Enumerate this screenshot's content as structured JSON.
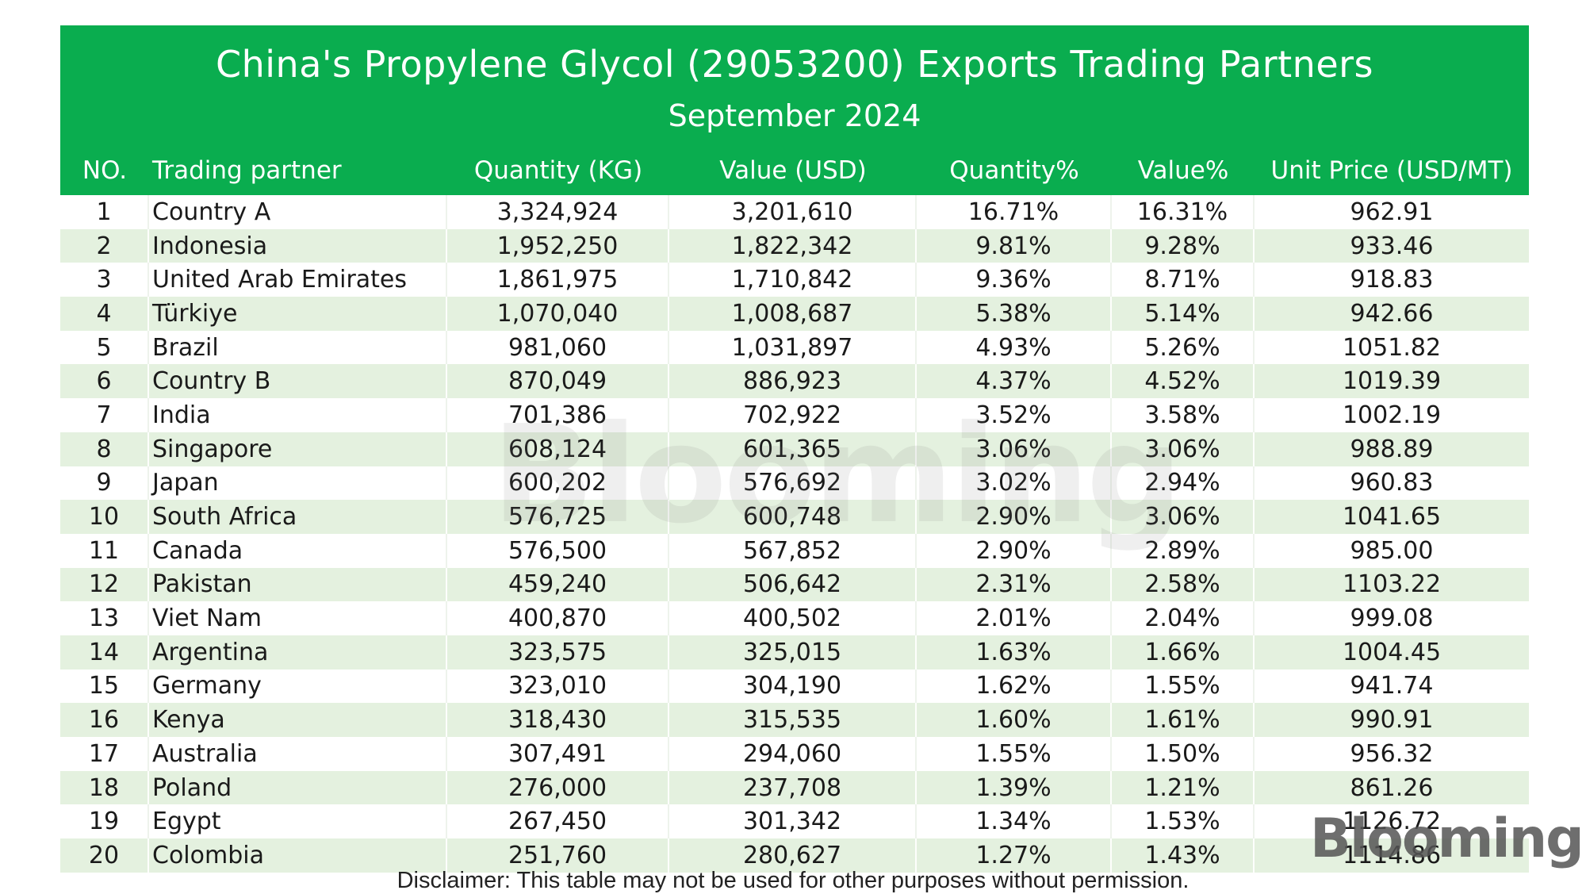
{
  "chart_data": {
    "type": "table",
    "title": "China's Propylene Glycol (29053200) Exports Trading Partners",
    "subtitle": "September 2024",
    "columns": [
      "NO.",
      "Trading partner",
      "Quantity (KG)",
      "Value (USD)",
      "Quantity%",
      "Value%",
      "Unit Price (USD/MT)"
    ],
    "rows": [
      [
        "1",
        "Country A",
        "3,324,924",
        "3,201,610",
        "16.71%",
        "16.31%",
        "962.91"
      ],
      [
        "2",
        "Indonesia",
        "1,952,250",
        "1,822,342",
        "9.81%",
        "9.28%",
        "933.46"
      ],
      [
        "3",
        "United Arab Emirates",
        "1,861,975",
        "1,710,842",
        "9.36%",
        "8.71%",
        "918.83"
      ],
      [
        "4",
        "Türkiye",
        "1,070,040",
        "1,008,687",
        "5.38%",
        "5.14%",
        "942.66"
      ],
      [
        "5",
        "Brazil",
        "981,060",
        "1,031,897",
        "4.93%",
        "5.26%",
        "1051.82"
      ],
      [
        "6",
        "Country B",
        "870,049",
        "886,923",
        "4.37%",
        "4.52%",
        "1019.39"
      ],
      [
        "7",
        "India",
        "701,386",
        "702,922",
        "3.52%",
        "3.58%",
        "1002.19"
      ],
      [
        "8",
        "Singapore",
        "608,124",
        "601,365",
        "3.06%",
        "3.06%",
        "988.89"
      ],
      [
        "9",
        "Japan",
        "600,202",
        "576,692",
        "3.02%",
        "2.94%",
        "960.83"
      ],
      [
        "10",
        "South Africa",
        "576,725",
        "600,748",
        "2.90%",
        "3.06%",
        "1041.65"
      ],
      [
        "11",
        "Canada",
        "576,500",
        "567,852",
        "2.90%",
        "2.89%",
        "985.00"
      ],
      [
        "12",
        "Pakistan",
        "459,240",
        "506,642",
        "2.31%",
        "2.58%",
        "1103.22"
      ],
      [
        "13",
        "Viet Nam",
        "400,870",
        "400,502",
        "2.01%",
        "2.04%",
        "999.08"
      ],
      [
        "14",
        "Argentina",
        "323,575",
        "325,015",
        "1.63%",
        "1.66%",
        "1004.45"
      ],
      [
        "15",
        "Germany",
        "323,010",
        "304,190",
        "1.62%",
        "1.55%",
        "941.74"
      ],
      [
        "16",
        "Kenya",
        "318,430",
        "315,535",
        "1.60%",
        "1.61%",
        "990.91"
      ],
      [
        "17",
        "Australia",
        "307,491",
        "294,060",
        "1.55%",
        "1.50%",
        "956.32"
      ],
      [
        "18",
        "Poland",
        "276,000",
        "237,708",
        "1.39%",
        "1.21%",
        "861.26"
      ],
      [
        "19",
        "Egypt",
        "267,450",
        "301,342",
        "1.34%",
        "1.53%",
        "1126.72"
      ],
      [
        "20",
        "Colombia",
        "251,760",
        "280,627",
        "1.27%",
        "1.43%",
        "1114.86"
      ]
    ]
  },
  "disclaimer": "Disclaimer: This table may not be used for other purposes without permission.",
  "watermark_text": "Blooming",
  "logo_text": "Blooming",
  "colors": {
    "header_green": "#0aad4f",
    "stripe_green": "#e4f1df"
  }
}
